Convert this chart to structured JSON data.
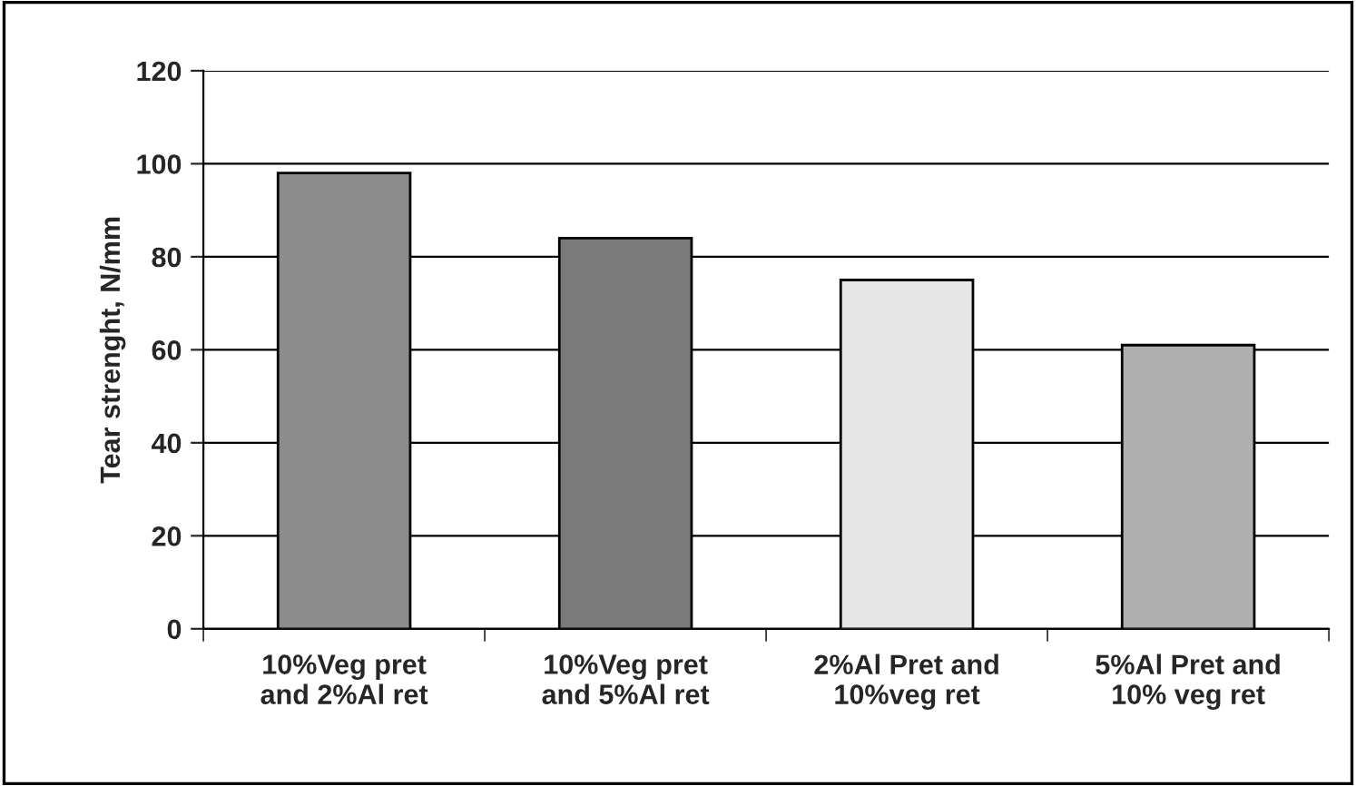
{
  "chart_data": {
    "type": "bar",
    "ylabel": "Tear strenght, N/mm",
    "categories": [
      "10%Veg pret\nand 2%Al ret",
      "10%Veg pret\nand 5%Al ret",
      "2%Al Pret and\n10%veg ret",
      "5%Al Pret and\n10% veg ret"
    ],
    "values": [
      98,
      84,
      75,
      61
    ],
    "colors": [
      "#8c8c8c",
      "#7a7a7a",
      "#e6e6e6",
      "#b0b0b0"
    ],
    "ylim": [
      0,
      120
    ],
    "yticks": [
      0,
      20,
      40,
      60,
      80,
      100,
      120
    ],
    "grid": "y"
  }
}
